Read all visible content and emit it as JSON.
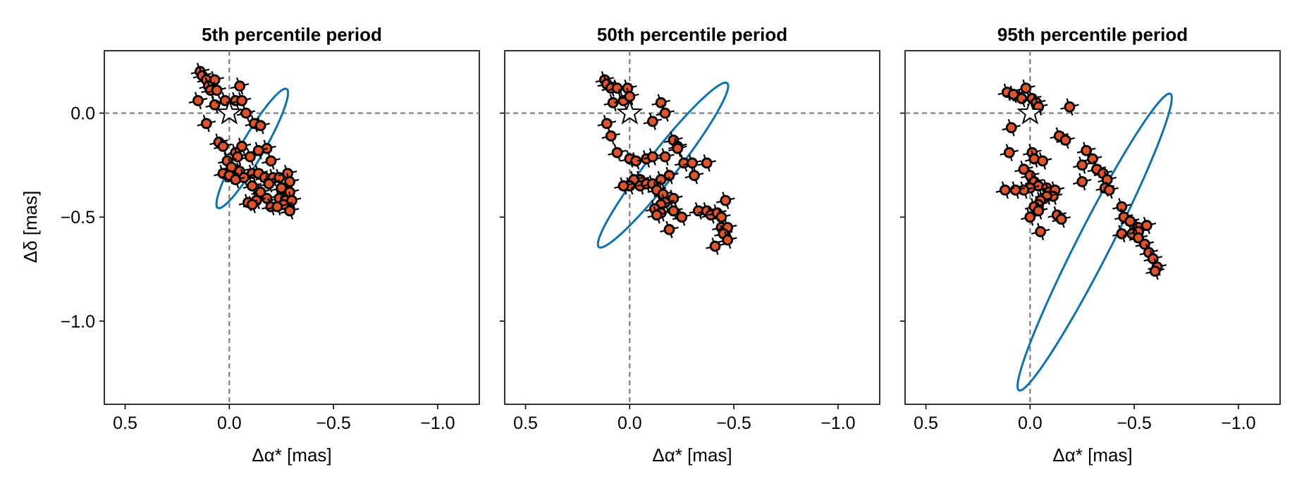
{
  "figure": {
    "ylabel": "Δδ [mas]",
    "ylim": [
      -1.4,
      0.3
    ],
    "xlim": [
      0.6,
      -1.2
    ],
    "x_ticks": [
      0.5,
      0.0,
      -0.5,
      -1.0
    ],
    "x_tick_labels": [
      "0.5",
      "0.0",
      "−0.5",
      "−1.0"
    ],
    "y_ticks": [
      0.0,
      -0.5,
      -1.0
    ],
    "y_tick_labels": [
      "0.0",
      "−0.5",
      "−1.0"
    ],
    "colors": {
      "orbit": "#0f72b0",
      "points": "#e0532b",
      "points_edge": "#000000",
      "guides": "#808080"
    }
  },
  "chart_data": [
    {
      "type": "scatter",
      "title": "5th percentile period",
      "xlabel": "Δα* [mas]",
      "ylabel": "Δδ [mas]",
      "xlim": [
        0.6,
        -1.2
      ],
      "ylim": [
        -1.4,
        0.3
      ],
      "grid": false,
      "guide_lines": {
        "x": 0.0,
        "y": 0.0
      },
      "star": [
        0.0,
        0.0
      ],
      "orbit": {
        "center": [
          -0.11,
          -0.17
        ],
        "semi_major": 0.33,
        "semi_minor": 0.055,
        "angle_deg": -60
      },
      "points": [
        [
          0.14,
          0.2
        ],
        [
          0.13,
          0.18
        ],
        [
          0.11,
          0.16
        ],
        [
          0.07,
          0.16
        ],
        [
          0.1,
          0.13
        ],
        [
          0.09,
          0.11
        ],
        [
          0.06,
          0.11
        ],
        [
          0.15,
          0.06
        ],
        [
          0.07,
          0.04
        ],
        [
          -0.05,
          0.13
        ],
        [
          0.02,
          0.06
        ],
        [
          -0.03,
          0.06
        ],
        [
          -0.06,
          0.06
        ],
        [
          -0.08,
          0.0
        ],
        [
          -0.12,
          -0.05
        ],
        [
          -0.15,
          -0.06
        ],
        [
          0.11,
          -0.05
        ],
        [
          0.05,
          -0.14
        ],
        [
          0.03,
          -0.16
        ],
        [
          -0.06,
          -0.16
        ],
        [
          -0.18,
          -0.17
        ],
        [
          -0.14,
          -0.18
        ],
        [
          -0.03,
          -0.19
        ],
        [
          -0.04,
          -0.21
        ],
        [
          0.01,
          -0.23
        ],
        [
          -0.1,
          -0.21
        ],
        [
          -0.2,
          -0.23
        ],
        [
          -0.01,
          -0.26
        ],
        [
          -0.05,
          -0.28
        ],
        [
          -0.11,
          -0.29
        ],
        [
          -0.14,
          -0.29
        ],
        [
          0.03,
          -0.29
        ],
        [
          0.0,
          -0.3
        ],
        [
          -0.07,
          -0.31
        ],
        [
          -0.03,
          -0.32
        ],
        [
          -0.17,
          -0.31
        ],
        [
          -0.21,
          -0.31
        ],
        [
          -0.24,
          -0.31
        ],
        [
          -0.28,
          -0.29
        ],
        [
          -0.29,
          -0.33
        ],
        [
          -0.19,
          -0.34
        ],
        [
          -0.11,
          -0.35
        ],
        [
          -0.25,
          -0.36
        ],
        [
          -0.29,
          -0.38
        ],
        [
          -0.15,
          -0.38
        ],
        [
          -0.18,
          -0.41
        ],
        [
          -0.24,
          -0.41
        ],
        [
          -0.27,
          -0.42
        ],
        [
          -0.3,
          -0.42
        ],
        [
          -0.13,
          -0.42
        ],
        [
          -0.09,
          -0.43
        ],
        [
          -0.11,
          -0.44
        ],
        [
          -0.26,
          -0.44
        ],
        [
          -0.2,
          -0.45
        ],
        [
          -0.23,
          -0.45
        ],
        [
          -0.29,
          -0.47
        ]
      ]
    },
    {
      "type": "scatter",
      "title": "50th percentile period",
      "xlabel": "Δα* [mas]",
      "ylabel": "",
      "xlim": [
        0.6,
        -1.2
      ],
      "ylim": [
        -1.4,
        0.3
      ],
      "grid": false,
      "guide_lines": {
        "x": 0.0,
        "y": 0.0
      },
      "star": [
        0.0,
        0.0
      ],
      "orbit": {
        "center": [
          -0.16,
          -0.25
        ],
        "semi_major": 0.5,
        "semi_minor": 0.07,
        "angle_deg": -52
      },
      "points": [
        [
          0.12,
          0.16
        ],
        [
          0.11,
          0.14
        ],
        [
          0.09,
          0.12
        ],
        [
          0.06,
          0.12
        ],
        [
          0.01,
          0.12
        ],
        [
          0.08,
          0.05
        ],
        [
          0.03,
          0.06
        ],
        [
          0.0,
          0.08
        ],
        [
          -0.15,
          0.05
        ],
        [
          -0.17,
          0.0
        ],
        [
          -0.11,
          -0.04
        ],
        [
          0.11,
          -0.05
        ],
        [
          0.09,
          -0.11
        ],
        [
          0.06,
          -0.19
        ],
        [
          0.0,
          -0.22
        ],
        [
          -0.03,
          -0.23
        ],
        [
          -0.08,
          -0.22
        ],
        [
          -0.11,
          -0.21
        ],
        [
          -0.21,
          -0.13
        ],
        [
          -0.23,
          -0.16
        ],
        [
          -0.23,
          -0.17
        ],
        [
          -0.17,
          -0.21
        ],
        [
          -0.26,
          -0.24
        ],
        [
          -0.3,
          -0.24
        ],
        [
          -0.37,
          -0.24
        ],
        [
          -0.31,
          -0.3
        ],
        [
          -0.19,
          -0.3
        ],
        [
          -0.15,
          -0.32
        ],
        [
          -0.05,
          -0.32
        ],
        [
          -0.02,
          -0.32
        ],
        [
          0.0,
          -0.35
        ],
        [
          0.03,
          -0.35
        ],
        [
          -0.05,
          -0.35
        ],
        [
          -0.08,
          -0.34
        ],
        [
          -0.11,
          -0.34
        ],
        [
          -0.13,
          -0.37
        ],
        [
          -0.16,
          -0.39
        ],
        [
          -0.21,
          -0.41
        ],
        [
          -0.17,
          -0.43
        ],
        [
          -0.15,
          -0.44
        ],
        [
          -0.12,
          -0.46
        ],
        [
          -0.15,
          -0.48
        ],
        [
          -0.13,
          -0.49
        ],
        [
          -0.21,
          -0.47
        ],
        [
          -0.25,
          -0.5
        ],
        [
          -0.33,
          -0.47
        ],
        [
          -0.37,
          -0.47
        ],
        [
          -0.39,
          -0.49
        ],
        [
          -0.42,
          -0.48
        ],
        [
          -0.44,
          -0.5
        ],
        [
          -0.46,
          -0.42
        ],
        [
          -0.44,
          -0.55
        ],
        [
          -0.47,
          -0.55
        ],
        [
          -0.45,
          -0.58
        ],
        [
          -0.47,
          -0.61
        ],
        [
          -0.41,
          -0.64
        ],
        [
          -0.19,
          -0.56
        ]
      ]
    },
    {
      "type": "scatter",
      "title": "95th percentile period",
      "xlabel": "Δα* [mas]",
      "ylabel": "",
      "xlim": [
        0.6,
        -1.2
      ],
      "ylim": [
        -1.4,
        0.3
      ],
      "grid": false,
      "guide_lines": {
        "x": 0.0,
        "y": 0.0
      },
      "star": [
        0.0,
        0.0
      ],
      "orbit": {
        "center": [
          -0.31,
          -0.62
        ],
        "semi_major": 0.8,
        "semi_minor": 0.08,
        "angle_deg": -63
      },
      "points": [
        [
          0.11,
          0.1
        ],
        [
          0.08,
          0.09
        ],
        [
          0.02,
          0.12
        ],
        [
          0.04,
          0.07
        ],
        [
          -0.01,
          0.07
        ],
        [
          -0.03,
          0.05
        ],
        [
          -0.04,
          0.03
        ],
        [
          -0.19,
          0.03
        ],
        [
          0.09,
          -0.07
        ],
        [
          -0.01,
          -0.19
        ],
        [
          -0.02,
          -0.22
        ],
        [
          -0.06,
          -0.23
        ],
        [
          0.1,
          -0.19
        ],
        [
          -0.14,
          -0.11
        ],
        [
          -0.17,
          -0.13
        ],
        [
          -0.27,
          -0.18
        ],
        [
          -0.3,
          -0.22
        ],
        [
          -0.25,
          -0.25
        ],
        [
          -0.32,
          -0.27
        ],
        [
          -0.35,
          -0.29
        ],
        [
          -0.37,
          -0.32
        ],
        [
          -0.36,
          -0.36
        ],
        [
          -0.38,
          -0.37
        ],
        [
          -0.25,
          -0.33
        ],
        [
          0.03,
          -0.27
        ],
        [
          0.0,
          -0.3
        ],
        [
          -0.02,
          -0.33
        ],
        [
          -0.04,
          -0.35
        ],
        [
          0.0,
          -0.36
        ],
        [
          0.03,
          -0.37
        ],
        [
          0.07,
          -0.37
        ],
        [
          0.12,
          -0.37
        ],
        [
          -0.08,
          -0.36
        ],
        [
          -0.09,
          -0.38
        ],
        [
          -0.12,
          -0.37
        ],
        [
          -0.11,
          -0.4
        ],
        [
          -0.08,
          -0.4
        ],
        [
          -0.05,
          -0.42
        ],
        [
          -0.04,
          -0.44
        ],
        [
          -0.02,
          -0.45
        ],
        [
          -0.04,
          -0.47
        ],
        [
          0.0,
          -0.5
        ],
        [
          -0.13,
          -0.49
        ],
        [
          -0.15,
          -0.51
        ],
        [
          -0.44,
          -0.45
        ],
        [
          -0.45,
          -0.5
        ],
        [
          -0.48,
          -0.52
        ],
        [
          -0.52,
          -0.55
        ],
        [
          -0.56,
          -0.54
        ],
        [
          -0.44,
          -0.58
        ],
        [
          -0.49,
          -0.58
        ],
        [
          -0.52,
          -0.57
        ],
        [
          -0.52,
          -0.6
        ],
        [
          -0.55,
          -0.63
        ],
        [
          -0.57,
          -0.67
        ],
        [
          -0.59,
          -0.7
        ],
        [
          -0.61,
          -0.74
        ],
        [
          -0.6,
          -0.76
        ],
        [
          -0.05,
          -0.57
        ]
      ]
    }
  ]
}
